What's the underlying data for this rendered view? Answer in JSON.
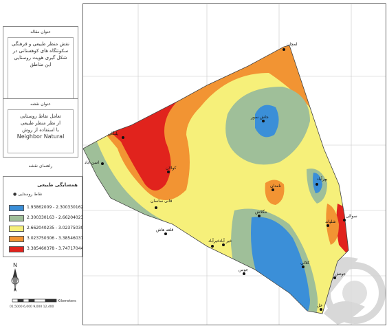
{
  "panel_article": {
    "header": "عنوان مقاله",
    "lines": [
      "نقش منظر طبیعی و فرهنگی",
      "سکونتگاه های کوهستانی در",
      "شکل گیری هویت روستایی",
      "این مناطق"
    ]
  },
  "panel_map": {
    "header": "عنوان نقشه",
    "lines": [
      "تعامل نقاط روستایی",
      "از نظر منظر طبیعی",
      "با استفاده از روش",
      "Neighbor Natural"
    ]
  },
  "legend": {
    "header": "راهنمای نقشه",
    "title": "همسایگی طبیعی",
    "point_label": "نقاط روستایی",
    "classes": [
      {
        "range": "1.93862009 - 2.300330162",
        "color": "#3b8fd8"
      },
      {
        "range": "2.300330163 - 2.662040234",
        "color": "#9fbf99"
      },
      {
        "range": "2.662040235 - 3.023750305",
        "color": "#f6f07a"
      },
      {
        "range": "3.023750306 - 3.385460377",
        "color": "#f29433"
      },
      {
        "range": "3.385460378 - 3.747170448",
        "color": "#e1231d"
      }
    ]
  },
  "north_label": "N",
  "scale": {
    "label": "Kilometers",
    "ticks": "01,5000 6,000 9,000 12,400"
  },
  "villages": [
    {
      "name": "لمچان",
      "color": "#111"
    },
    {
      "name": "پلنگان",
      "color": "#111"
    },
    {
      "name": "جاش سور",
      "color": "#111"
    },
    {
      "name": "کوالان",
      "color": "#111"
    },
    {
      "name": "اسن آباد",
      "color": "#111"
    },
    {
      "name": "بهرآباد",
      "color": "#111"
    },
    {
      "name": "نامدان",
      "color": "#111"
    },
    {
      "name": "قانی ساسان",
      "color": "#111"
    },
    {
      "name": "ننگلاش",
      "color": "#111"
    },
    {
      "name": "شلپاند",
      "color": "#111"
    },
    {
      "name": "سوالی",
      "color": "#111"
    },
    {
      "name": "قلعه هاش",
      "color": "#111"
    },
    {
      "name": "خیر آباد",
      "color": "#111"
    },
    {
      "name": "کلالی",
      "color": "#111"
    },
    {
      "name": "جوس",
      "color": "#111"
    },
    {
      "name": "خیرآباد",
      "color": "#111"
    },
    {
      "name": "جوتش",
      "color": "#111"
    },
    {
      "name": "خل",
      "color": "#111"
    }
  ]
}
